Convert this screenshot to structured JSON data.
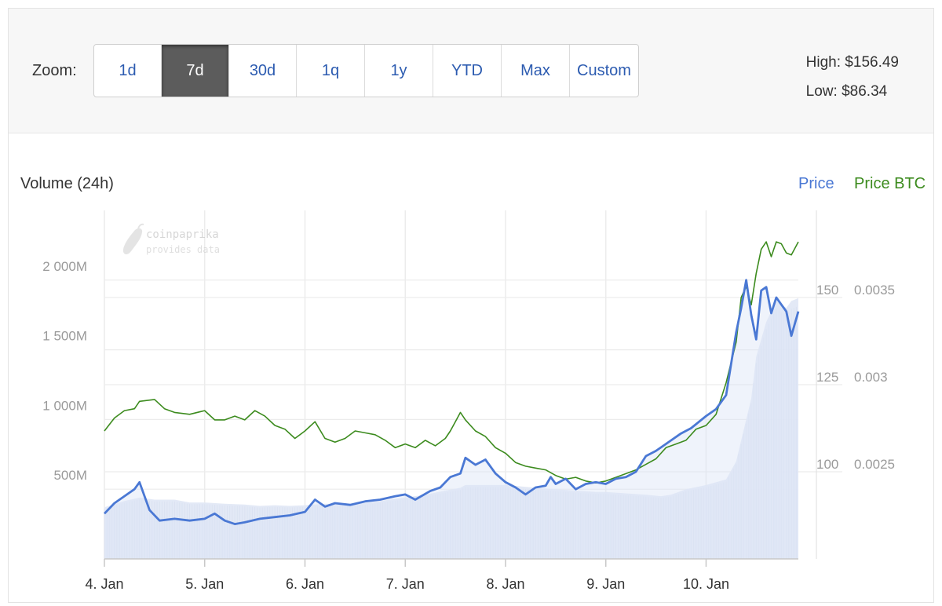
{
  "toolbar": {
    "zoom_label": "Zoom:",
    "zoom_buttons": [
      {
        "label": "1d",
        "active": false
      },
      {
        "label": "7d",
        "active": true
      },
      {
        "label": "30d",
        "active": false
      },
      {
        "label": "1q",
        "active": false
      },
      {
        "label": "1y",
        "active": false
      },
      {
        "label": "YTD",
        "active": false
      },
      {
        "label": "Max",
        "active": false
      },
      {
        "label": "Custom",
        "active": false
      }
    ],
    "high": "High: $156.49",
    "low": "Low: $86.34"
  },
  "watermark": {
    "line1": "coinpaprika",
    "line2": "provides data"
  },
  "colors": {
    "price": "#4a78d4",
    "price_btc": "#3c8b1e",
    "volume": "#e1e8f6",
    "volume_bar": "#d3dcee",
    "grid": "#ececec"
  },
  "chart_data": {
    "type": "line",
    "title": "",
    "legend": [
      "Price",
      "Price BTC"
    ],
    "legend_position": "top-right",
    "volume_axis_label": "Volume (24h)",
    "x_ticks": [
      "4. Jan",
      "5. Jan",
      "6. Jan",
      "7. Jan",
      "8. Jan",
      "9. Jan",
      "10. Jan"
    ],
    "x_range": [
      4,
      10.92
    ],
    "volume_ticks": [
      "500M",
      "1 000M",
      "1 500M",
      "2 000M"
    ],
    "volume_range": [
      0,
      2500
    ],
    "price_ticks": [
      "100",
      "125",
      "150"
    ],
    "price_range": [
      75,
      175
    ],
    "btc_ticks": [
      "0.0025",
      "0.003",
      "0.0035"
    ],
    "btc_range": [
      0.00201,
      0.00389
    ],
    "grid": true,
    "series": [
      {
        "name": "Price",
        "axis": "usd",
        "points": [
          [
            4.0,
            88.0
          ],
          [
            4.1,
            91.0
          ],
          [
            4.2,
            93.0
          ],
          [
            4.3,
            95.0
          ],
          [
            4.35,
            97.0
          ],
          [
            4.45,
            89.0
          ],
          [
            4.55,
            86.0
          ],
          [
            4.7,
            86.5
          ],
          [
            4.85,
            86.0
          ],
          [
            5.0,
            86.5
          ],
          [
            5.1,
            88.0
          ],
          [
            5.2,
            86.0
          ],
          [
            5.3,
            85.0
          ],
          [
            5.4,
            85.5
          ],
          [
            5.55,
            86.5
          ],
          [
            5.7,
            87.0
          ],
          [
            5.85,
            87.5
          ],
          [
            6.0,
            88.5
          ],
          [
            6.1,
            92.0
          ],
          [
            6.2,
            90.0
          ],
          [
            6.3,
            91.0
          ],
          [
            6.45,
            90.5
          ],
          [
            6.6,
            91.5
          ],
          [
            6.75,
            92.0
          ],
          [
            6.9,
            93.0
          ],
          [
            7.0,
            93.5
          ],
          [
            7.1,
            92.0
          ],
          [
            7.25,
            94.5
          ],
          [
            7.35,
            95.5
          ],
          [
            7.45,
            98.5
          ],
          [
            7.55,
            99.5
          ],
          [
            7.6,
            104.0
          ],
          [
            7.7,
            102.0
          ],
          [
            7.8,
            103.5
          ],
          [
            7.9,
            99.5
          ],
          [
            8.0,
            97.0
          ],
          [
            8.1,
            95.5
          ],
          [
            8.2,
            93.5
          ],
          [
            8.3,
            95.5
          ],
          [
            8.4,
            96.0
          ],
          [
            8.45,
            98.5
          ],
          [
            8.5,
            96.5
          ],
          [
            8.6,
            98.0
          ],
          [
            8.7,
            95.0
          ],
          [
            8.8,
            96.5
          ],
          [
            8.9,
            97.0
          ],
          [
            9.0,
            96.5
          ],
          [
            9.1,
            98.0
          ],
          [
            9.2,
            98.5
          ],
          [
            9.3,
            100.0
          ],
          [
            9.4,
            104.5
          ],
          [
            9.5,
            106.0
          ],
          [
            9.6,
            108.0
          ],
          [
            9.75,
            111.0
          ],
          [
            9.85,
            112.5
          ],
          [
            10.0,
            116.0
          ],
          [
            10.1,
            118.0
          ],
          [
            10.2,
            122.0
          ],
          [
            10.3,
            140.0
          ],
          [
            10.35,
            147.0
          ],
          [
            10.4,
            155.0
          ],
          [
            10.45,
            145.0
          ],
          [
            10.5,
            138.0
          ],
          [
            10.55,
            152.0
          ],
          [
            10.6,
            153.0
          ],
          [
            10.65,
            145.5
          ],
          [
            10.7,
            150.0
          ],
          [
            10.75,
            148.0
          ],
          [
            10.8,
            146.0
          ],
          [
            10.85,
            139.0
          ],
          [
            10.92,
            146.0
          ]
        ]
      },
      {
        "name": "Price BTC",
        "axis": "btc",
        "points": [
          [
            4.0,
            0.0027
          ],
          [
            4.1,
            0.00277
          ],
          [
            4.2,
            0.00281
          ],
          [
            4.3,
            0.00282
          ],
          [
            4.35,
            0.00286
          ],
          [
            4.5,
            0.00287
          ],
          [
            4.6,
            0.00282
          ],
          [
            4.7,
            0.0028
          ],
          [
            4.85,
            0.00279
          ],
          [
            5.0,
            0.00281
          ],
          [
            5.1,
            0.00276
          ],
          [
            5.2,
            0.00276
          ],
          [
            5.3,
            0.00278
          ],
          [
            5.4,
            0.00276
          ],
          [
            5.5,
            0.00281
          ],
          [
            5.6,
            0.00278
          ],
          [
            5.7,
            0.00273
          ],
          [
            5.8,
            0.00271
          ],
          [
            5.9,
            0.00266
          ],
          [
            6.0,
            0.0027
          ],
          [
            6.1,
            0.00275
          ],
          [
            6.2,
            0.00266
          ],
          [
            6.3,
            0.00264
          ],
          [
            6.4,
            0.00266
          ],
          [
            6.5,
            0.0027
          ],
          [
            6.6,
            0.00269
          ],
          [
            6.7,
            0.00268
          ],
          [
            6.8,
            0.00265
          ],
          [
            6.9,
            0.00261
          ],
          [
            7.0,
            0.00263
          ],
          [
            7.1,
            0.00261
          ],
          [
            7.2,
            0.00265
          ],
          [
            7.3,
            0.00262
          ],
          [
            7.4,
            0.00266
          ],
          [
            7.45,
            0.0027
          ],
          [
            7.5,
            0.00275
          ],
          [
            7.55,
            0.0028
          ],
          [
            7.6,
            0.00276
          ],
          [
            7.7,
            0.0027
          ],
          [
            7.8,
            0.00267
          ],
          [
            7.9,
            0.00261
          ],
          [
            8.0,
            0.00258
          ],
          [
            8.1,
            0.00253
          ],
          [
            8.2,
            0.00251
          ],
          [
            8.3,
            0.0025
          ],
          [
            8.4,
            0.00249
          ],
          [
            8.5,
            0.00246
          ],
          [
            8.6,
            0.00244
          ],
          [
            8.7,
            0.00245
          ],
          [
            8.8,
            0.00243
          ],
          [
            8.9,
            0.00242
          ],
          [
            9.0,
            0.00243
          ],
          [
            9.1,
            0.00245
          ],
          [
            9.2,
            0.00247
          ],
          [
            9.3,
            0.00249
          ],
          [
            9.4,
            0.00252
          ],
          [
            9.5,
            0.00255
          ],
          [
            9.6,
            0.00261
          ],
          [
            9.7,
            0.00263
          ],
          [
            9.8,
            0.00265
          ],
          [
            9.9,
            0.00271
          ],
          [
            10.0,
            0.00273
          ],
          [
            10.1,
            0.00279
          ],
          [
            10.2,
            0.00296
          ],
          [
            10.3,
            0.00318
          ],
          [
            10.35,
            0.00342
          ],
          [
            10.4,
            0.00348
          ],
          [
            10.45,
            0.00338
          ],
          [
            10.5,
            0.00355
          ],
          [
            10.55,
            0.00368
          ],
          [
            10.6,
            0.00372
          ],
          [
            10.65,
            0.00364
          ],
          [
            10.7,
            0.00372
          ],
          [
            10.75,
            0.00371
          ],
          [
            10.8,
            0.00366
          ],
          [
            10.85,
            0.00365
          ],
          [
            10.92,
            0.00372
          ]
        ]
      },
      {
        "name": "Volume (24h)",
        "axis": "volume",
        "type": "area",
        "points": [
          [
            4.0,
            370
          ],
          [
            4.2,
            415
          ],
          [
            4.35,
            440
          ],
          [
            4.5,
            425
          ],
          [
            4.7,
            425
          ],
          [
            4.85,
            405
          ],
          [
            5.0,
            405
          ],
          [
            5.2,
            395
          ],
          [
            5.4,
            390
          ],
          [
            5.55,
            380
          ],
          [
            5.7,
            385
          ],
          [
            5.85,
            380
          ],
          [
            6.0,
            385
          ],
          [
            6.2,
            395
          ],
          [
            6.45,
            395
          ],
          [
            6.6,
            400
          ],
          [
            6.8,
            420
          ],
          [
            7.0,
            440
          ],
          [
            7.2,
            460
          ],
          [
            7.4,
            490
          ],
          [
            7.55,
            510
          ],
          [
            7.6,
            530
          ],
          [
            7.75,
            530
          ],
          [
            7.9,
            530
          ],
          [
            8.0,
            530
          ],
          [
            8.15,
            520
          ],
          [
            8.3,
            510
          ],
          [
            8.5,
            500
          ],
          [
            8.7,
            490
          ],
          [
            8.9,
            480
          ],
          [
            9.0,
            480
          ],
          [
            9.2,
            470
          ],
          [
            9.4,
            460
          ],
          [
            9.55,
            450
          ],
          [
            9.65,
            460
          ],
          [
            9.8,
            500
          ],
          [
            10.0,
            530
          ],
          [
            10.2,
            570
          ],
          [
            10.3,
            700
          ],
          [
            10.35,
            850
          ],
          [
            10.45,
            1150
          ],
          [
            10.5,
            1450
          ],
          [
            10.6,
            1700
          ],
          [
            10.7,
            1850
          ],
          [
            10.8,
            1800
          ],
          [
            10.85,
            1850
          ],
          [
            10.92,
            1870
          ]
        ]
      }
    ]
  }
}
